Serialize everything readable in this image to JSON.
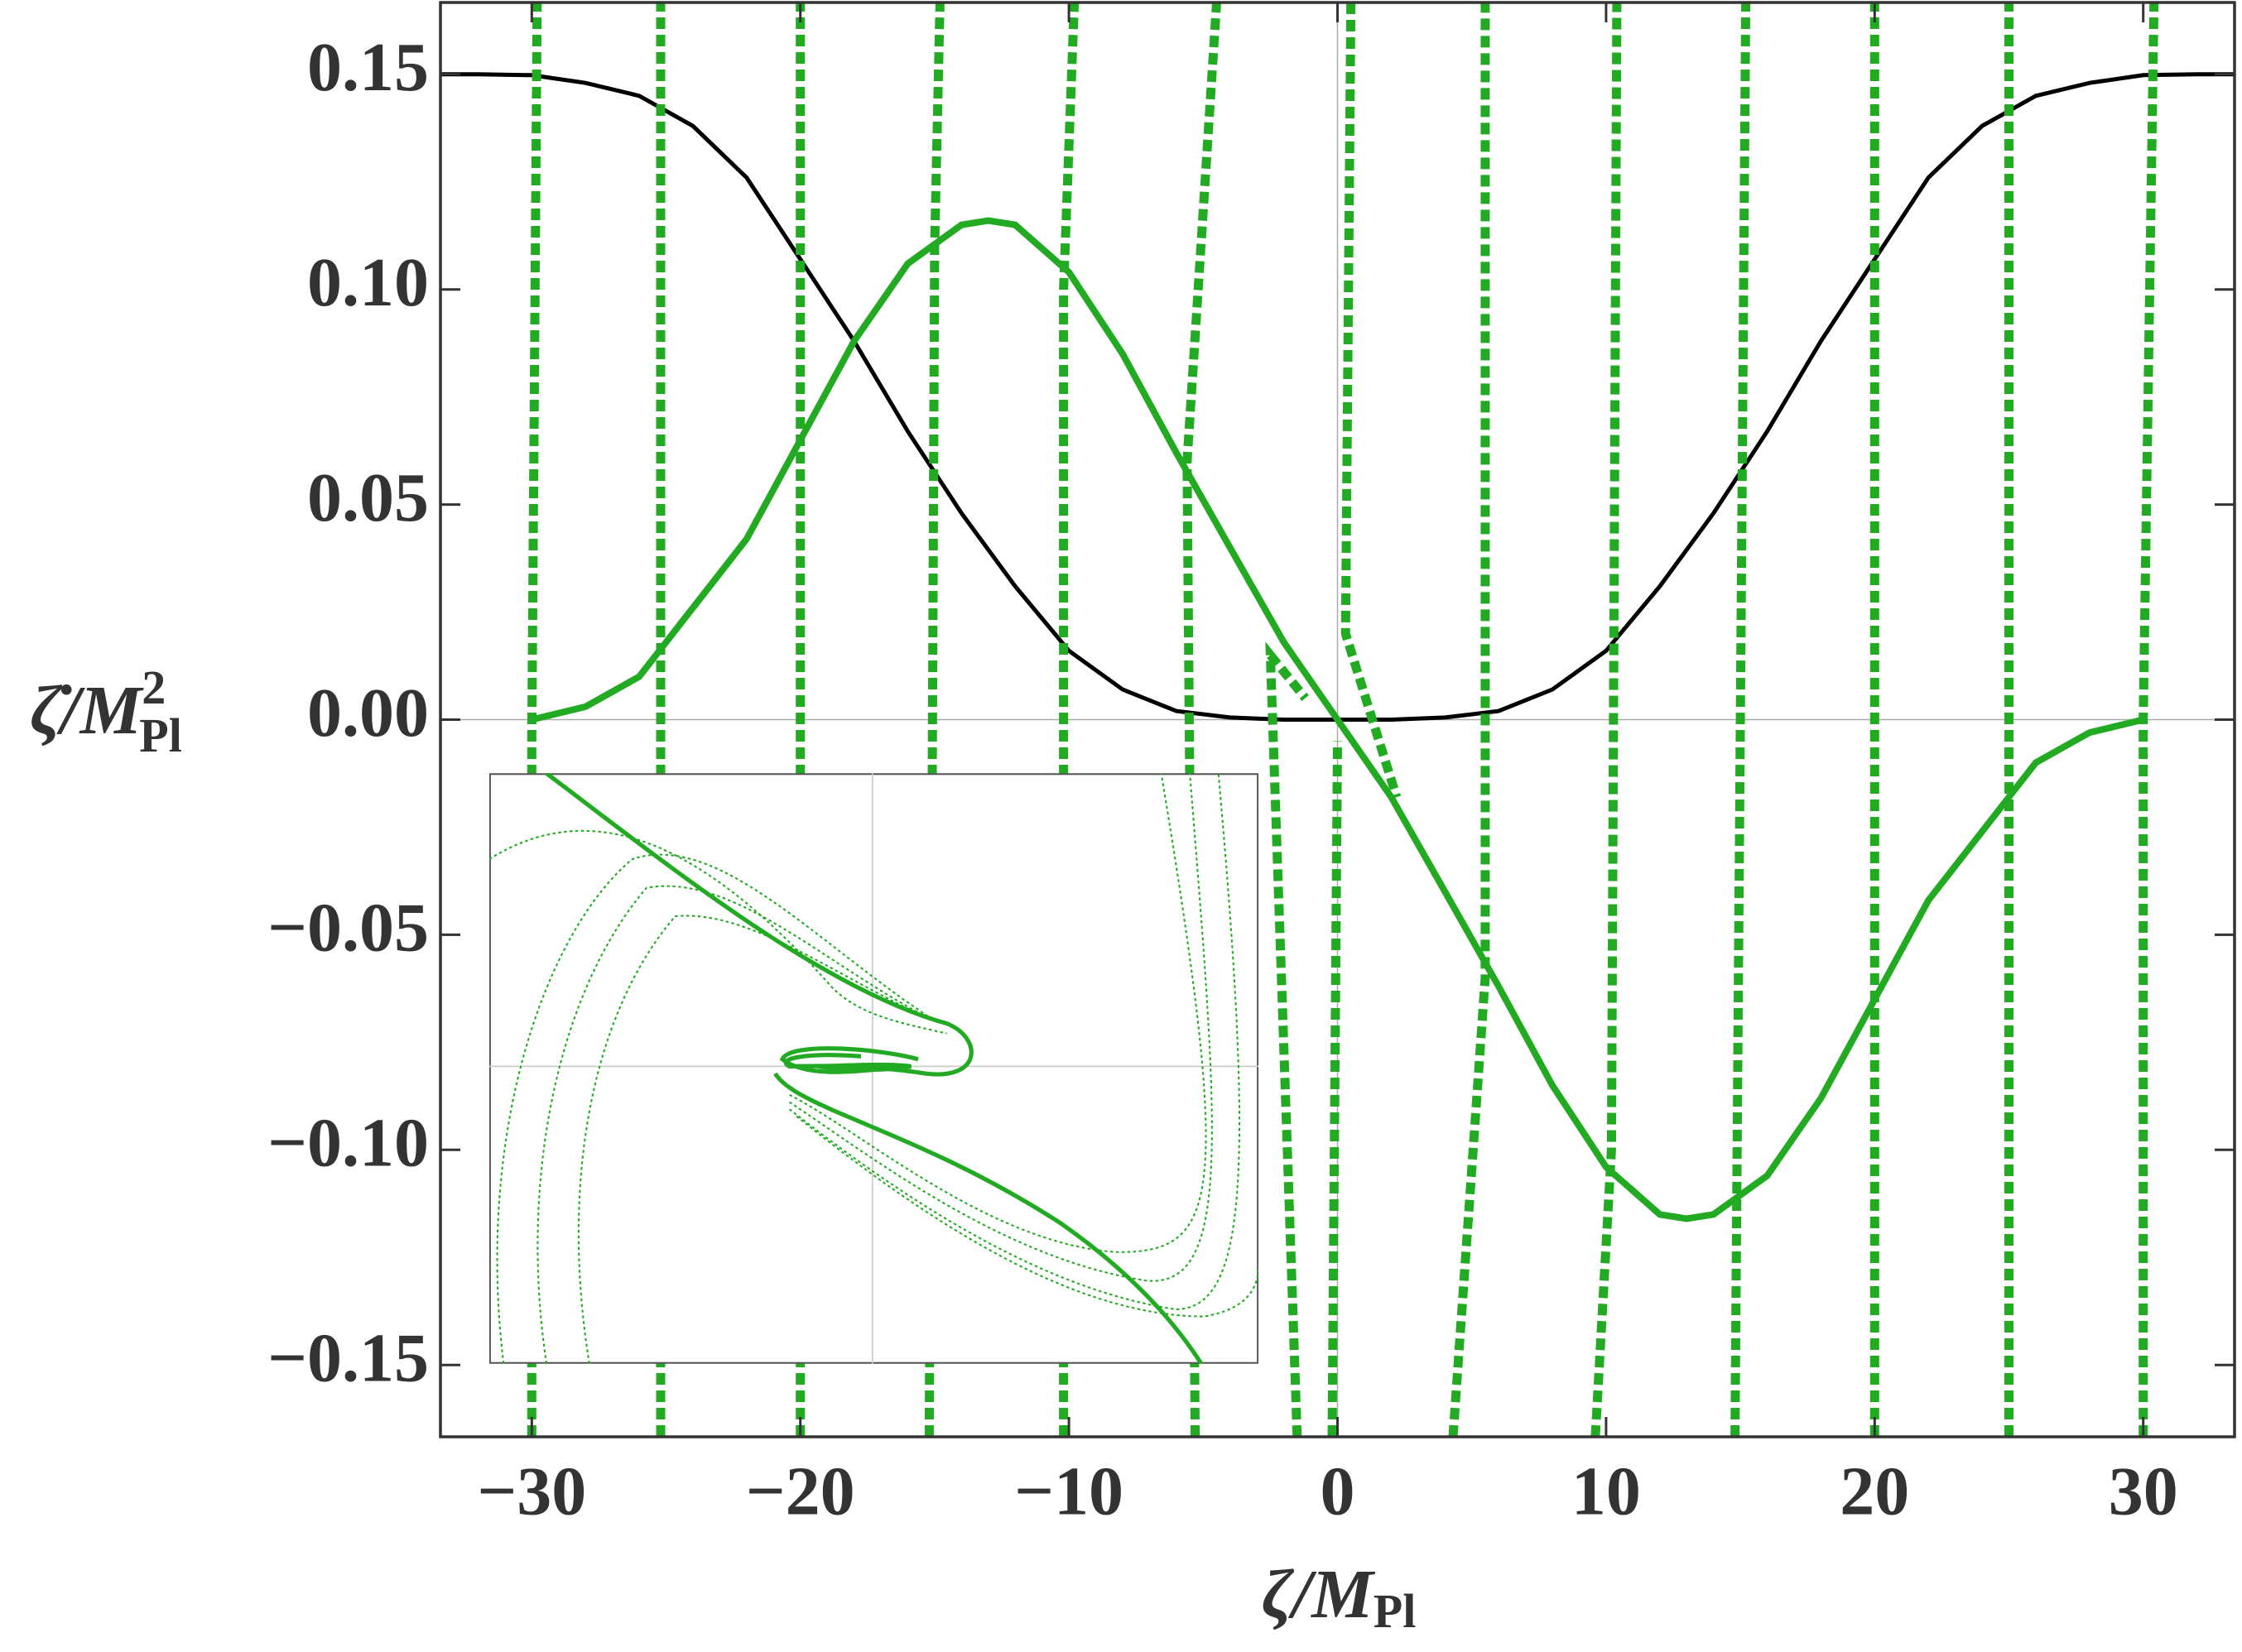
{
  "chart_data": {
    "type": "line",
    "xlabel": {
      "text": "ζ/M",
      "subscript": "Pl"
    },
    "ylabel": {
      "text": "ζ̇/M",
      "superscript": "2",
      "subscript": "Pl"
    },
    "xlim": [
      -33.4,
      33.4
    ],
    "ylim": [
      -0.1667,
      0.1667
    ],
    "xticks": [
      {
        "value": -30,
        "label": "−30"
      },
      {
        "value": -20,
        "label": "−20"
      },
      {
        "value": -10,
        "label": "−10"
      },
      0,
      10,
      20,
      30
    ],
    "yticks": [
      {
        "value": -0.15,
        "label": "−0.15"
      },
      {
        "value": -0.1,
        "label": "−0.10"
      },
      {
        "value": -0.05,
        "label": "−0.05"
      },
      {
        "value": 0,
        "label": "0.00"
      },
      0.05,
      {
        "value": 0.1,
        "label": "0.10"
      },
      0.15
    ],
    "series": [
      {
        "color": "#000000",
        "style": "solid",
        "x": [
          -33.4,
          -32,
          -30,
          -28,
          -26,
          -24,
          -22,
          -20,
          -18,
          -16,
          -14,
          -12,
          -10,
          -8,
          -6,
          -4,
          -2,
          0,
          2,
          4,
          6,
          8,
          10,
          12,
          14,
          16,
          18,
          20,
          22,
          24,
          26,
          28,
          30,
          32,
          33.4
        ],
        "values": [
          0.15,
          0.15,
          0.1498,
          0.148,
          0.145,
          0.138,
          0.126,
          0.107,
          0.088,
          0.067,
          0.048,
          0.031,
          0.016,
          0.007,
          0.002,
          0.0005,
          0,
          0,
          0,
          0.0005,
          0.002,
          0.007,
          0.016,
          0.031,
          0.048,
          0.067,
          0.088,
          0.107,
          0.126,
          0.138,
          0.145,
          0.148,
          0.1498,
          0.15,
          0.15
        ]
      },
      {
        "color": "#22aa22",
        "style": "solid",
        "x": [
          -30,
          -28,
          -26,
          -25,
          -22,
          -20,
          -18,
          -16,
          -14,
          -13,
          -12,
          -10,
          -8,
          -6,
          -4,
          -2,
          0,
          2,
          4,
          6,
          8,
          10,
          12,
          13,
          14,
          16,
          18,
          20,
          22,
          25,
          26,
          28,
          30
        ],
        "values": [
          0,
          0.003,
          0.01,
          0.018,
          0.042,
          0.065,
          0.088,
          0.106,
          0.115,
          0.116,
          0.115,
          0.104,
          0.085,
          0.062,
          0.04,
          0.018,
          0,
          -0.018,
          -0.04,
          -0.062,
          -0.085,
          -0.104,
          -0.115,
          -0.116,
          -0.115,
          -0.106,
          -0.088,
          -0.065,
          -0.042,
          -0.018,
          -0.01,
          -0.003,
          0
        ]
      },
      {
        "color": "#22aa22",
        "style": "dashed",
        "x": [
          -30,
          -30,
          -29.8
        ],
        "values": [
          -0.1667,
          -0.005,
          0.1667
        ]
      },
      {
        "color": "#22aa22",
        "style": "dashed",
        "x": [
          -25.2,
          -25.2
        ],
        "values": [
          -0.1667,
          0.1667
        ]
      },
      {
        "color": "#22aa22",
        "style": "dashed",
        "x": [
          -20,
          -20
        ],
        "values": [
          -0.1667,
          0.1667
        ]
      },
      {
        "color": "#22aa22",
        "style": "dashed",
        "x": [
          -15.2,
          -15,
          -14.8
        ],
        "values": [
          -0.1667,
          0.11,
          0.1667
        ]
      },
      {
        "color": "#22aa22",
        "style": "dashed",
        "x": [
          -10.2,
          -10.2,
          -9.8
        ],
        "values": [
          -0.1667,
          0.1,
          0.1667
        ]
      },
      {
        "color": "#22aa22",
        "style": "dashed",
        "x": [
          -5.3,
          -5.6,
          -4.5
        ],
        "values": [
          -0.1667,
          0.06,
          0.1667
        ]
      },
      {
        "color": "#22aa22",
        "style": "dashed",
        "x": [
          -1.5,
          -2.5,
          -1.2
        ],
        "values": [
          -0.1667,
          0.015,
          0.005
        ]
      },
      {
        "color": "#22aa22",
        "style": "dashed",
        "x": [
          -0.2,
          0
        ],
        "values": [
          -0.1667,
          -0.005
        ]
      },
      {
        "color": "#22aa22",
        "style": "dashed",
        "x": [
          0.5,
          0.3,
          2.2
        ],
        "values": [
          0.1667,
          0.02,
          -0.018
        ]
      },
      {
        "color": "#22aa22",
        "style": "dashed",
        "x": [
          4.3,
          5.5,
          5.5
        ],
        "values": [
          -0.1667,
          -0.06,
          0.1667
        ]
      },
      {
        "color": "#22aa22",
        "style": "dashed",
        "x": [
          9.6,
          10.2,
          10.4
        ],
        "values": [
          -0.1667,
          -0.1,
          0.1667
        ]
      },
      {
        "color": "#22aa22",
        "style": "dashed",
        "x": [
          14.8,
          15.2
        ],
        "values": [
          -0.1667,
          0.1667
        ]
      },
      {
        "color": "#22aa22",
        "style": "dashed",
        "x": [
          20,
          20
        ],
        "values": [
          -0.1667,
          0.1667
        ]
      },
      {
        "color": "#22aa22",
        "style": "dashed",
        "x": [
          25,
          25
        ],
        "values": [
          -0.1667,
          0.1667
        ]
      },
      {
        "color": "#22aa22",
        "style": "dashed",
        "x": [
          30,
          30,
          30.4
        ],
        "values": [
          -0.1667,
          0,
          0.1667
        ]
      }
    ]
  }
}
